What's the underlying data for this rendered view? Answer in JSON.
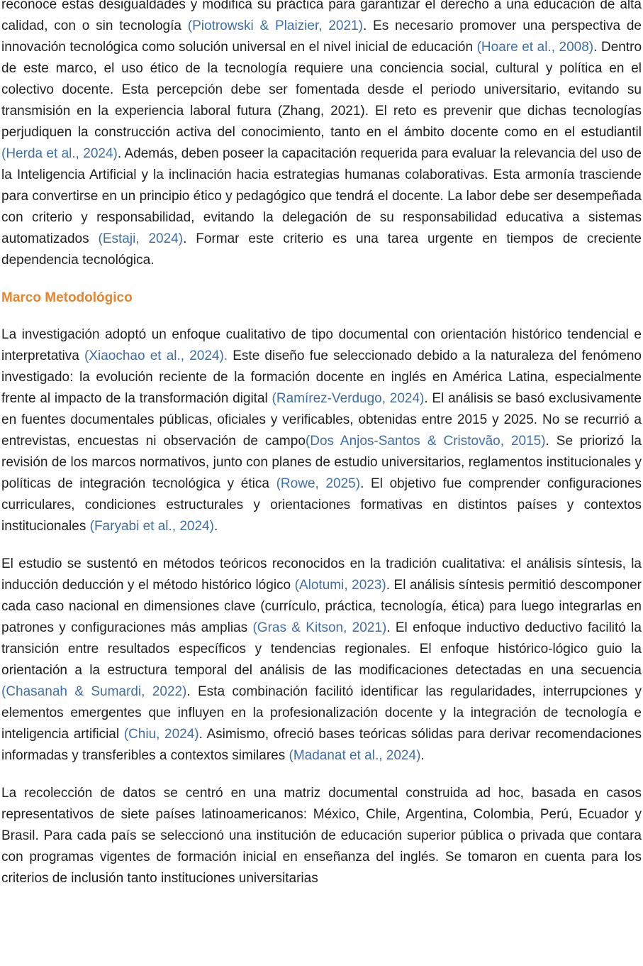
{
  "intro_paragraph": [
    {
      "text": "reconoce estas desigualdades y modifica su práctica para garantizar el derecho a una educación de alta calidad, con o sin tecnología ",
      "citation": "(Piotrowski & Plaizier, 2021)"
    },
    {
      "text": ". Es necesario promover una perspectiva de innovación tecnológica como solución universal en el nivel inicial de educación ",
      "citation": "(Hoare et al., 2008)"
    },
    {
      "text": ". Dentro de este marco, el uso ético de la tecnología requiere una conciencia social, cultural y política en el colectivo docente. Esta percepción debe ser fomentada desde el periodo universitario, evitando su transmisión en la experiencia laboral futura (Zhang, 2021). El reto es prevenir que dichas tecnologías perjudiquen la construcción activa del conocimiento, tanto en el ámbito docente como en el estudiantil ",
      "citation": "(Herda et al., 2024)"
    },
    {
      "text": ". Además, deben poseer la capacitación requerida para evaluar la relevancia del uso de la Inteligencia Artificial y la inclinación hacia estrategias humanas colaborativas. Esta armonía trasciende para convertirse en un principio ético y pedagógico que tendrá el docente. La labor debe ser desempeñada con criterio y responsabilidad, evitando la delegación de su responsabilidad educativa a sistemas automatizados ",
      "citation": "(Estaji, 2024)"
    },
    {
      "text": ". Formar este criterio es una tarea urgente en tiempos de creciente dependencia tecnológica."
    }
  ],
  "section": {
    "heading": "Marco Metodológico",
    "paragraphs": [
      [
        {
          "text": "La investigación adoptó un enfoque cualitativo de tipo documental con orientación histórico tendencial e interpretativa ",
          "citation": "(Xiaochao et al., 2024)."
        },
        {
          "text": " Este diseño fue seleccionado debido a la naturaleza del fenómeno investigado: la evolución reciente de la formación docente en inglés en América Latina, especialmente frente al impacto de la transformación digital ",
          "citation": "(Ramírez-Verdugo, 2024)"
        },
        {
          "text": ". El análisis se basó exclusivamente en fuentes documentales públicas, oficiales y verificables, obtenidas entre 2015 y 2025. No se recurrió a entrevistas, encuestas ni observación de campo",
          "citation": "(Dos Anjos-Santos & Cristovão, 2015)"
        },
        {
          "text": ". Se priorizó la revisión de los marcos normativos, junto con planes de estudio universitarios, reglamentos institucionales y políticas de integración tecnológica y ética ",
          "citation": "(Rowe, 2025)"
        },
        {
          "text": ". El objetivo fue comprender configuraciones curriculares, condiciones estructurales y orientaciones formativas en distintos países y contextos institucionales ",
          "citation": "(Faryabi et al., 2024)"
        },
        {
          "text": "."
        }
      ],
      [
        {
          "text": "El estudio se sustentó en métodos teóricos reconocidos en la tradición cualitativa: el análisis síntesis, la inducción deducción y el método histórico lógico ",
          "citation": "(Alotumi, 2023)"
        },
        {
          "text": ". El análisis síntesis permitió descomponer cada caso nacional en dimensiones clave (currículo, práctica, tecnología, ética) para luego integrarlas en patrones y configuraciones más amplias ",
          "citation": "(Gras & Kitson, 2021)"
        },
        {
          "text": ". El enfoque inductivo deductivo facilitó la transición entre resultados específicos y tendencias regionales. El enfoque histórico-lógico guio la orientación a la estructura temporal del análisis de las modificaciones detectadas en una secuencia ",
          "citation": "(Chasanah & Sumardi, 2022)"
        },
        {
          "text": ". Esta combinación facilitó identificar las regularidades, interrupciones y elementos emergentes que influyen en la profesionalización docente y la integración de tecnología e inteligencia artificial ",
          "citation": "(Chiu, 2024)"
        },
        {
          "text": ". Asimismo, ofreció bases teóricas sólidas para derivar recomendaciones informadas y transferibles a contextos similares ",
          "citation": "(Madanat et al., 2024)"
        },
        {
          "text": "."
        }
      ],
      [
        {
          "text": "La recolección de datos se centró en una matriz documental construida ad hoc, basada en casos representativos de siete países latinoamericanos: México, Chile, Argentina, Colombia, Perú, Ecuador y Brasil. Para cada país se seleccionó una institución de educación superior pública o privada que contara con programas vigentes de formación inicial en enseñanza del inglés. Se tomaron en cuenta para los criterios de inclusión tanto instituciones universitarias"
        }
      ]
    ]
  }
}
